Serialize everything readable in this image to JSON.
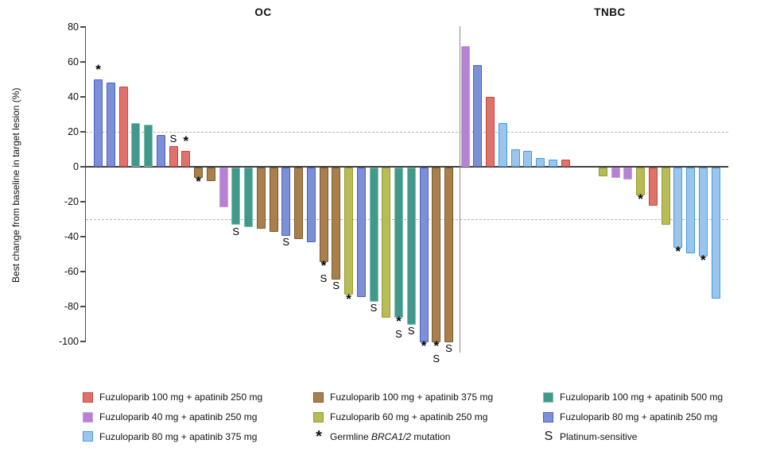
{
  "y_axis": {
    "label": "Best change from baseline in target lesion (%)",
    "ticks": [
      80,
      60,
      40,
      20,
      0,
      -20,
      -40,
      -60,
      -80,
      -100
    ]
  },
  "palette": {
    "red": {
      "fill": "#DF726A",
      "border": "#C4463C"
    },
    "orchid": {
      "fill": "#B583D1",
      "border": "#D494EE"
    },
    "lightblue": {
      "fill": "#9BC5EA",
      "border": "#3E9CE9"
    },
    "brown": {
      "fill": "#A8804E",
      "border": "#7C5A28"
    },
    "olive": {
      "fill": "#B7BB58",
      "border": "#969C2F"
    },
    "teal": {
      "fill": "#43988C",
      "border": "#7CC4B0"
    },
    "periwinkle": {
      "fill": "#7D90D6",
      "border": "#4A5ECE"
    }
  },
  "chart_data": {
    "type": "bar",
    "title": "",
    "ylabel": "Best change from baseline in target lesion (%)",
    "ylim": [
      -100,
      80
    ],
    "yticks": [
      80,
      60,
      40,
      20,
      0,
      -20,
      -40,
      -60,
      -80,
      -100
    ],
    "reference_lines": [
      20,
      -30
    ],
    "grid": "off",
    "marker_meanings": {
      "*": "Germline BRCA1/2 mutation",
      "S": "Platinum-sensitive"
    },
    "groups": [
      {
        "name": "OC",
        "bars": [
          {
            "v": 50,
            "c": "periwinkle",
            "m": "*"
          },
          {
            "v": 48,
            "c": "periwinkle",
            "m": ""
          },
          {
            "v": 46,
            "c": "red",
            "m": ""
          },
          {
            "v": 25,
            "c": "teal",
            "m": ""
          },
          {
            "v": 24,
            "c": "teal",
            "m": ""
          },
          {
            "v": 18,
            "c": "periwinkle",
            "m": ""
          },
          {
            "v": 12,
            "c": "red",
            "m": "S"
          },
          {
            "v": 9,
            "c": "red",
            "m": "*"
          },
          {
            "v": -6,
            "c": "brown",
            "m": "*"
          },
          {
            "v": -8,
            "c": "brown",
            "m": ""
          },
          {
            "v": -23,
            "c": "orchid",
            "m": ""
          },
          {
            "v": -33,
            "c": "teal",
            "m": "S"
          },
          {
            "v": -34,
            "c": "teal",
            "m": ""
          },
          {
            "v": -35,
            "c": "brown",
            "m": ""
          },
          {
            "v": -37,
            "c": "brown",
            "m": ""
          },
          {
            "v": -39,
            "c": "periwinkle",
            "m": "S"
          },
          {
            "v": -41,
            "c": "brown",
            "m": ""
          },
          {
            "v": -43,
            "c": "periwinkle",
            "m": ""
          },
          {
            "v": -54,
            "c": "brown",
            "m": "*S"
          },
          {
            "v": -64,
            "c": "brown",
            "m": "S"
          },
          {
            "v": -73,
            "c": "olive",
            "m": "*"
          },
          {
            "v": -74,
            "c": "periwinkle",
            "m": ""
          },
          {
            "v": -77,
            "c": "teal",
            "m": "S"
          },
          {
            "v": -86,
            "c": "olive",
            "m": ""
          },
          {
            "v": -86,
            "c": "teal",
            "m": "*S"
          },
          {
            "v": -90,
            "c": "teal",
            "m": "S"
          },
          {
            "v": -100,
            "c": "periwinkle",
            "m": "*"
          },
          {
            "v": -100,
            "c": "brown",
            "m": "*S"
          },
          {
            "v": -100,
            "c": "brown",
            "m": "S"
          }
        ]
      },
      {
        "name": "TNBC",
        "bars": [
          {
            "v": 69,
            "c": "orchid",
            "m": ""
          },
          {
            "v": 58,
            "c": "periwinkle",
            "m": ""
          },
          {
            "v": 40,
            "c": "red",
            "m": ""
          },
          {
            "v": 25,
            "c": "lightblue",
            "m": ""
          },
          {
            "v": 10,
            "c": "lightblue",
            "m": ""
          },
          {
            "v": 9,
            "c": "lightblue",
            "m": ""
          },
          {
            "v": 5,
            "c": "lightblue",
            "m": ""
          },
          {
            "v": 4,
            "c": "lightblue",
            "m": ""
          },
          {
            "v": 4,
            "c": "red",
            "m": ""
          },
          {
            "v": 0,
            "c": null,
            "m": ""
          },
          {
            "v": 0,
            "c": null,
            "m": ""
          },
          {
            "v": -5,
            "c": "olive",
            "m": ""
          },
          {
            "v": -6,
            "c": "orchid",
            "m": ""
          },
          {
            "v": -7,
            "c": "orchid",
            "m": ""
          },
          {
            "v": -16,
            "c": "olive",
            "m": "*"
          },
          {
            "v": -22,
            "c": "red",
            "m": ""
          },
          {
            "v": -33,
            "c": "olive",
            "m": ""
          },
          {
            "v": -46,
            "c": "lightblue",
            "m": "*"
          },
          {
            "v": -49,
            "c": "lightblue",
            "m": ""
          },
          {
            "v": -51,
            "c": "lightblue",
            "m": "*"
          },
          {
            "v": -75,
            "c": "lightblue",
            "m": ""
          }
        ]
      }
    ]
  },
  "legend": {
    "columns": [
      {
        "items": [
          {
            "swatch": "red",
            "label": "Fuzuloparib 100 mg + apatinib 250 mg"
          },
          {
            "swatch": "orchid",
            "label": "Fuzuloparib 40 mg + apatinib 250 mg"
          },
          {
            "swatch": "lightblue",
            "label": "Fuzuloparib 80 mg + apatinib 375 mg"
          }
        ]
      },
      {
        "items": [
          {
            "swatch": "brown",
            "label": "Fuzuloparib 100 mg + apatinib 375 mg"
          },
          {
            "swatch": "olive",
            "label": "Fuzuloparib 60 mg + apatinib 250 mg"
          },
          {
            "symbol": "*",
            "label_prefix": "Germline ",
            "label_italic": "BRCA1/2",
            "label_suffix": " mutation"
          }
        ]
      },
      {
        "items": [
          {
            "swatch": "teal",
            "label": "Fuzuloparib 100 mg + apatinib 500 mg"
          },
          {
            "swatch": "periwinkle",
            "label": "Fuzuloparib 80 mg + apatinib 250 mg"
          },
          {
            "symbol": "S",
            "label": "Platinum-sensitive"
          }
        ]
      }
    ]
  }
}
